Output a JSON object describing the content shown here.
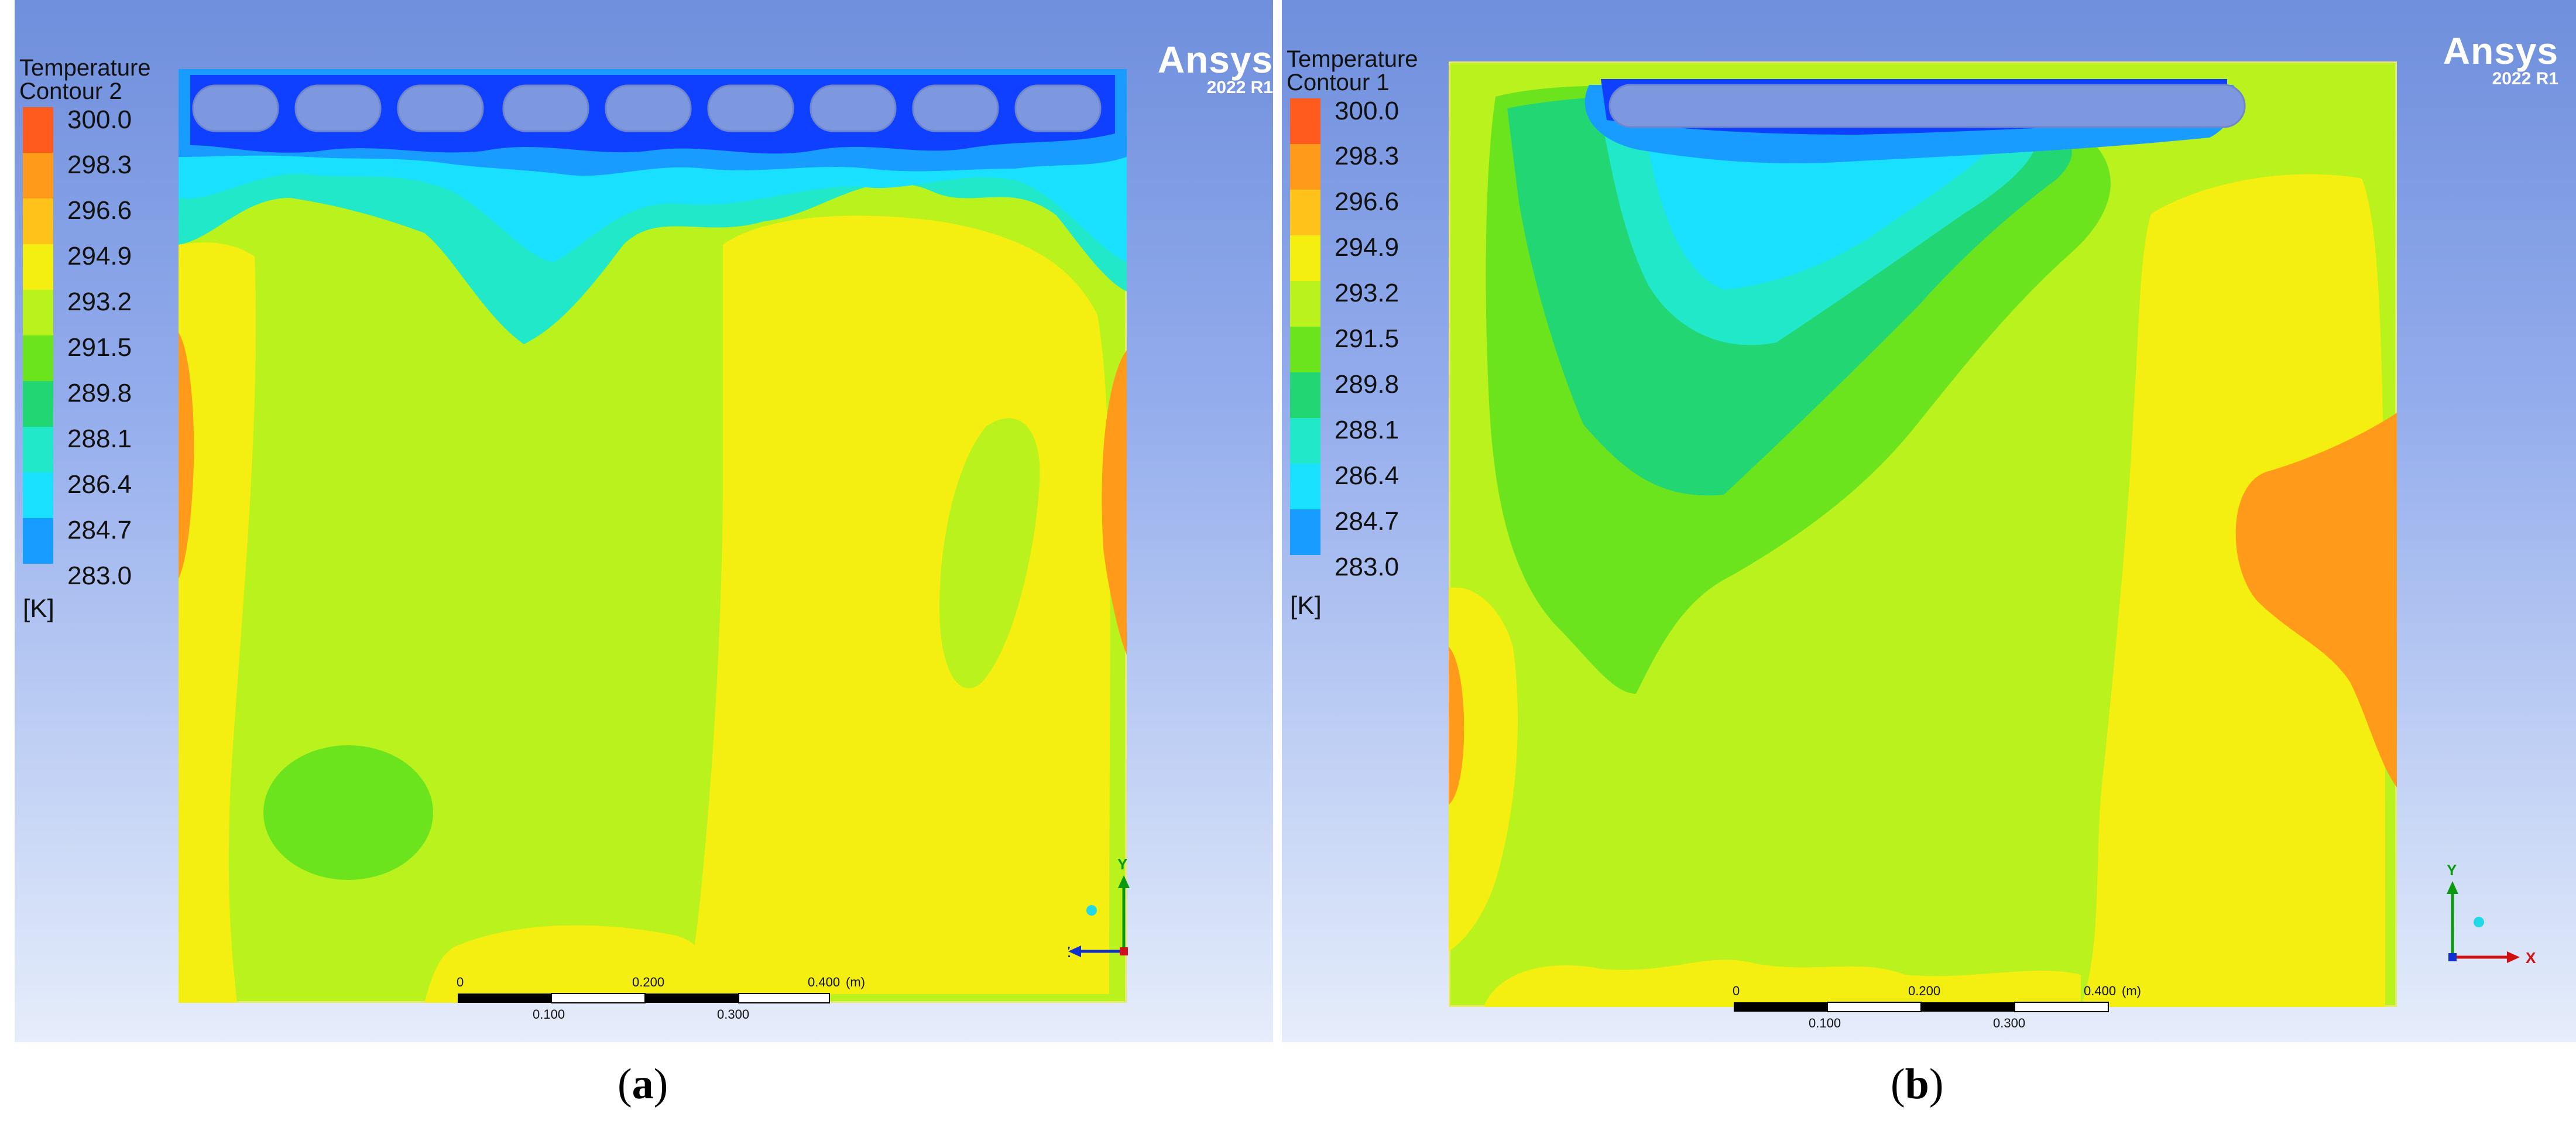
{
  "legend_ticks": [
    "300.0",
    "298.3",
    "296.6",
    "294.9",
    "293.2",
    "291.5",
    "289.8",
    "288.1",
    "286.4",
    "284.7",
    "283.0"
  ],
  "legend_colors": [
    "#ff5a1e",
    "#ff9a1a",
    "#ffc21a",
    "#f4ef10",
    "#b9f21c",
    "#6be41e",
    "#22d673",
    "#20e8c8",
    "#1ae0ff",
    "#189cff",
    "#1040ff"
  ],
  "unit": "[K]",
  "brand": {
    "name": "Ansys",
    "version": "2022 R1"
  },
  "panels": [
    {
      "id": "a",
      "legend_title": "Temperature",
      "legend_subtitle": "Contour 2",
      "caption_open": "(",
      "caption_letter": "a",
      "caption_close": ")",
      "scale_top": [
        "0",
        "0.200",
        "0.400",
        "(m)"
      ],
      "scale_bottom": [
        "0.100",
        "0.300"
      ],
      "axis_vertical": "Y",
      "axis_horizontal": "Z"
    },
    {
      "id": "b",
      "legend_title": "Temperature",
      "legend_subtitle": "Contour 1",
      "caption_open": "(",
      "caption_letter": "b",
      "caption_close": ")",
      "scale_top": [
        "0",
        "0.200",
        "0.400",
        "(m)"
      ],
      "scale_bottom": [
        "0.100",
        "0.300"
      ],
      "axis_vertical": "Y",
      "axis_horizontal": "X"
    }
  ]
}
